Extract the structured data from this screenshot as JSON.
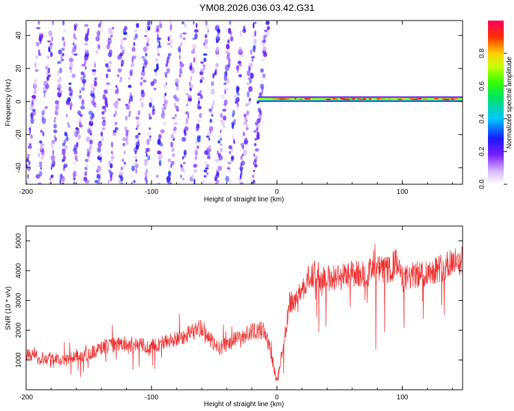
{
  "title": "YM08.2026.036.03.42.G31",
  "colors": {
    "snr_line": "#ef3030",
    "axes": "#000000",
    "background": "#ffffff"
  },
  "chart_data": [
    {
      "type": "heatmap",
      "title": "YM08.2026.036.03.42.G31",
      "xlabel": "Height of straight line (km)",
      "ylabel": "Frequency (Hz)",
      "xlim": [
        -200,
        148
      ],
      "ylim": [
        -50,
        49
      ],
      "x_ticks": [
        "-200",
        "-100",
        "0",
        "100"
      ],
      "x_tick_values": [
        -200,
        -100,
        0,
        100
      ],
      "y_ticks": [
        "-40",
        "-20",
        "0",
        "20",
        "40"
      ],
      "y_tick_values": [
        -40,
        -20,
        0,
        20,
        40
      ],
      "colorbar": {
        "label": "Normalized spectral amplitude",
        "range": [
          0,
          1
        ],
        "ticks": [
          "0.0",
          "0.2",
          "0.4",
          "0.6",
          "0.8"
        ],
        "tick_values": [
          0.0,
          0.2,
          0.4,
          0.6,
          0.8
        ]
      },
      "features": {
        "noise_region_x": [
          -200,
          -15
        ],
        "noise_stripe_spacing_km": 9.5,
        "noise_amplitude_range": [
          0.05,
          0.3
        ],
        "signal_band_x": [
          -15,
          148
        ],
        "signal_band_freq_hz": 1.5,
        "signal_band_peak_amplitude": 0.95
      }
    },
    {
      "type": "line",
      "xlabel": "Height of straight line (km)",
      "ylabel": "SNR (10 * v/v)",
      "xlim": [
        -200,
        148
      ],
      "ylim": [
        0,
        5500
      ],
      "x_ticks": [
        "-200",
        "-100",
        "0",
        "100"
      ],
      "x_tick_values": [
        -200,
        -100,
        0,
        100
      ],
      "y_ticks": [
        "1000",
        "2000",
        "3000",
        "4000",
        "5000"
      ],
      "y_tick_values": [
        1000,
        2000,
        3000,
        4000,
        5000
      ],
      "series": [
        {
          "name": "SNR",
          "x": [
            -200,
            -190,
            -180,
            -170,
            -160,
            -150,
            -140,
            -130,
            -120,
            -110,
            -100,
            -90,
            -80,
            -70,
            -60,
            -55,
            -50,
            -45,
            -40,
            -30,
            -20,
            -10,
            -5,
            0,
            5,
            10,
            15,
            20,
            25,
            30,
            40,
            50,
            60,
            70,
            80,
            90,
            95,
            100,
            110,
            120,
            130,
            140,
            148
          ],
          "values": [
            1200,
            1050,
            1100,
            950,
            1150,
            1200,
            1400,
            1500,
            1550,
            1500,
            1450,
            1600,
            1700,
            1900,
            2100,
            1800,
            1500,
            1400,
            1550,
            1750,
            1950,
            2000,
            1300,
            250,
            1500,
            2900,
            3000,
            3400,
            3700,
            3900,
            3750,
            3800,
            3900,
            3900,
            4050,
            4000,
            4300,
            3700,
            3850,
            3950,
            4100,
            4250,
            4350
          ]
        }
      ]
    }
  ]
}
